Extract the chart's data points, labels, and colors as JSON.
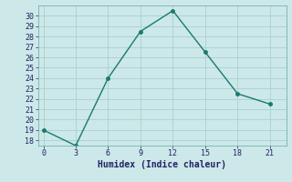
{
  "x": [
    0,
    3,
    6,
    9,
    12,
    15,
    18,
    21
  ],
  "y": [
    19,
    17.5,
    24,
    28.5,
    30.5,
    26.5,
    22.5,
    21.5
  ],
  "line_color": "#1a7a6e",
  "marker": "o",
  "marker_size": 2.5,
  "bg_color": "#cce8e8",
  "grid_color": "#aad0d0",
  "xlabel": "Humidex (Indice chaleur)",
  "xlim": [
    -0.5,
    22.5
  ],
  "ylim": [
    17.5,
    31
  ],
  "xticks": [
    0,
    3,
    6,
    9,
    12,
    15,
    18,
    21
  ],
  "yticks": [
    18,
    19,
    20,
    21,
    22,
    23,
    24,
    25,
    26,
    27,
    28,
    29,
    30
  ],
  "font_color": "#222266",
  "tick_fontsize": 6,
  "xlabel_fontsize": 7,
  "linewidth": 1.0
}
